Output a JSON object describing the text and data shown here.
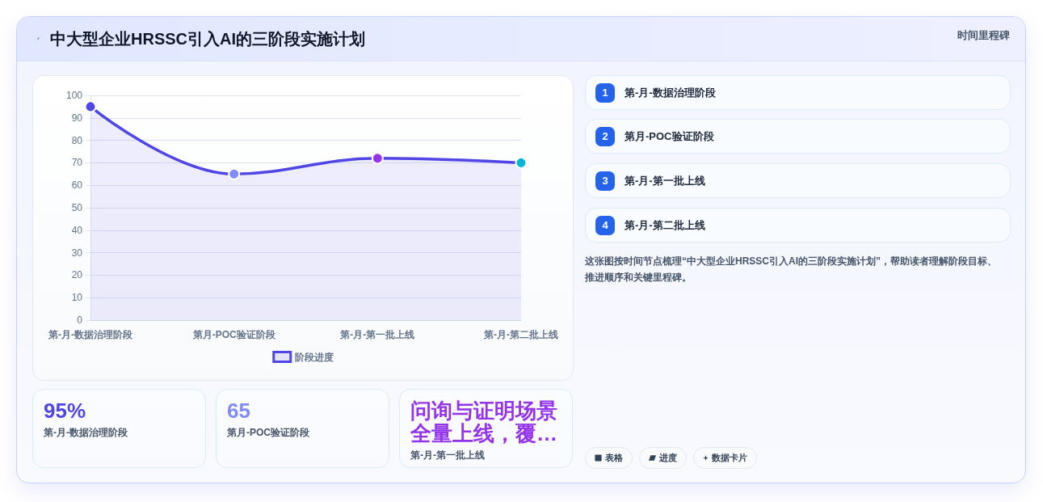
{
  "chart_data": {
    "type": "area",
    "title": "中大型企业HRSSC引入AI的三阶段实施计划",
    "categories": [
      "第-月-数据治理阶段",
      "第月-POC验证阶段",
      "第-月-第一批上线",
      "第-月-第二批上线"
    ],
    "series": [
      {
        "name": "阶段进度",
        "color": "#4f46e5",
        "colors": [
          "#4f46e5",
          "#818cf8",
          "#9333ea",
          "#06b6d4"
        ],
        "values": [
          95,
          65,
          72,
          70
        ]
      }
    ],
    "ylim": [
      0,
      100
    ],
    "yticks": [
      0,
      10,
      20,
      30,
      40,
      50,
      60,
      70,
      80,
      90,
      100
    ],
    "grid": "y",
    "legend": "bottom",
    "marker": "circle",
    "line_style": "solid",
    "annotations": [
      "时间里程碑",
      "95%",
      "第-月-数据治理阶段",
      "65",
      "第月-POC验证阶段",
      "问询与证明场景全量上线，覆…",
      "第-月-第一批上线",
      "1",
      "第-月-数据治理阶段",
      "2",
      "第月-POC验证阶段",
      "3",
      "第-月-第一批上线",
      "4",
      "第-月-第二批上线",
      "这张图按时间节点梳理“中大型企业HRSSC引入AI的三阶段实施计划”，帮助读者理解阶段目标、推进顺序和关键里程碑。",
      "表格",
      "进度",
      "数据卡片"
    ]
  }
}
